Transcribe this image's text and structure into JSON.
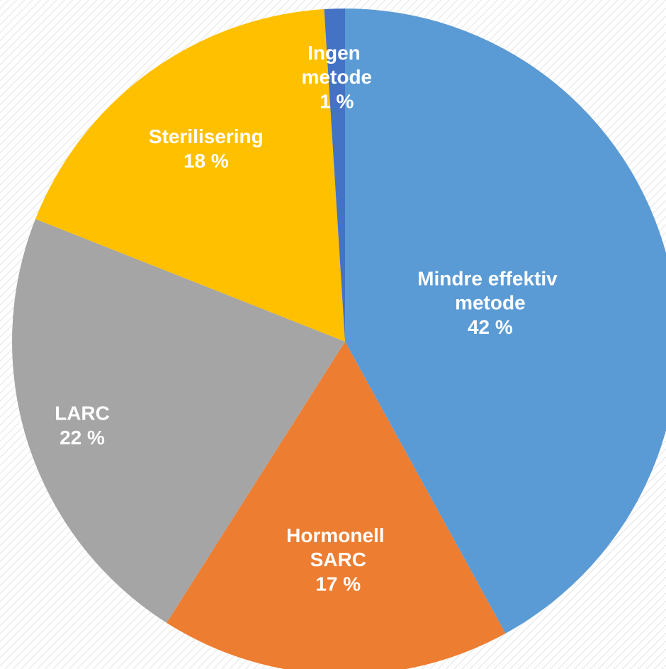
{
  "chart_data": {
    "type": "pie",
    "categories": [
      "Mindre effektiv metode",
      "Hormonell SARC",
      "LARC",
      "Sterilisering",
      "Ingen metode"
    ],
    "values": [
      42,
      17,
      22,
      18,
      1
    ],
    "value_labels": [
      "42 %",
      "17 %",
      "22 %",
      "18 %",
      "1 %"
    ],
    "colors": [
      "#5b9bd5",
      "#ed7d31",
      "#a5a5a5",
      "#ffc000",
      "#4472c4"
    ]
  }
}
